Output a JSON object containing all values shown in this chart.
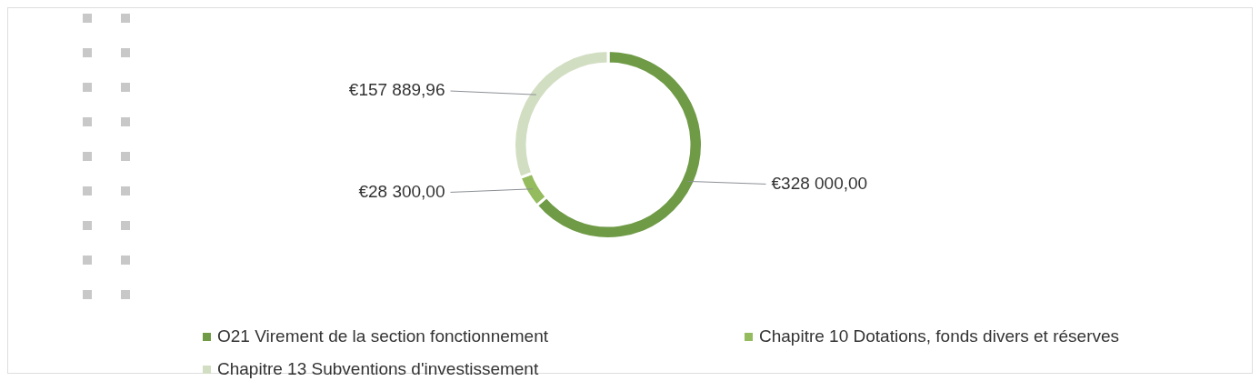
{
  "chart_data": {
    "type": "donut",
    "categories": [
      "O21 Virement de la section fonctionnement",
      "Chapitre 10 Dotations, fonds divers et réserves",
      "Chapitre 13 Subventions d'investissement"
    ],
    "values": [
      328000,
      28300,
      157889.96
    ],
    "value_labels": [
      "€328 000,00",
      "€28 300,00",
      "€157 889,96"
    ],
    "colors": [
      "#6f9a46",
      "#94bb5e",
      "#d2dec2"
    ],
    "legend": "bottom"
  }
}
